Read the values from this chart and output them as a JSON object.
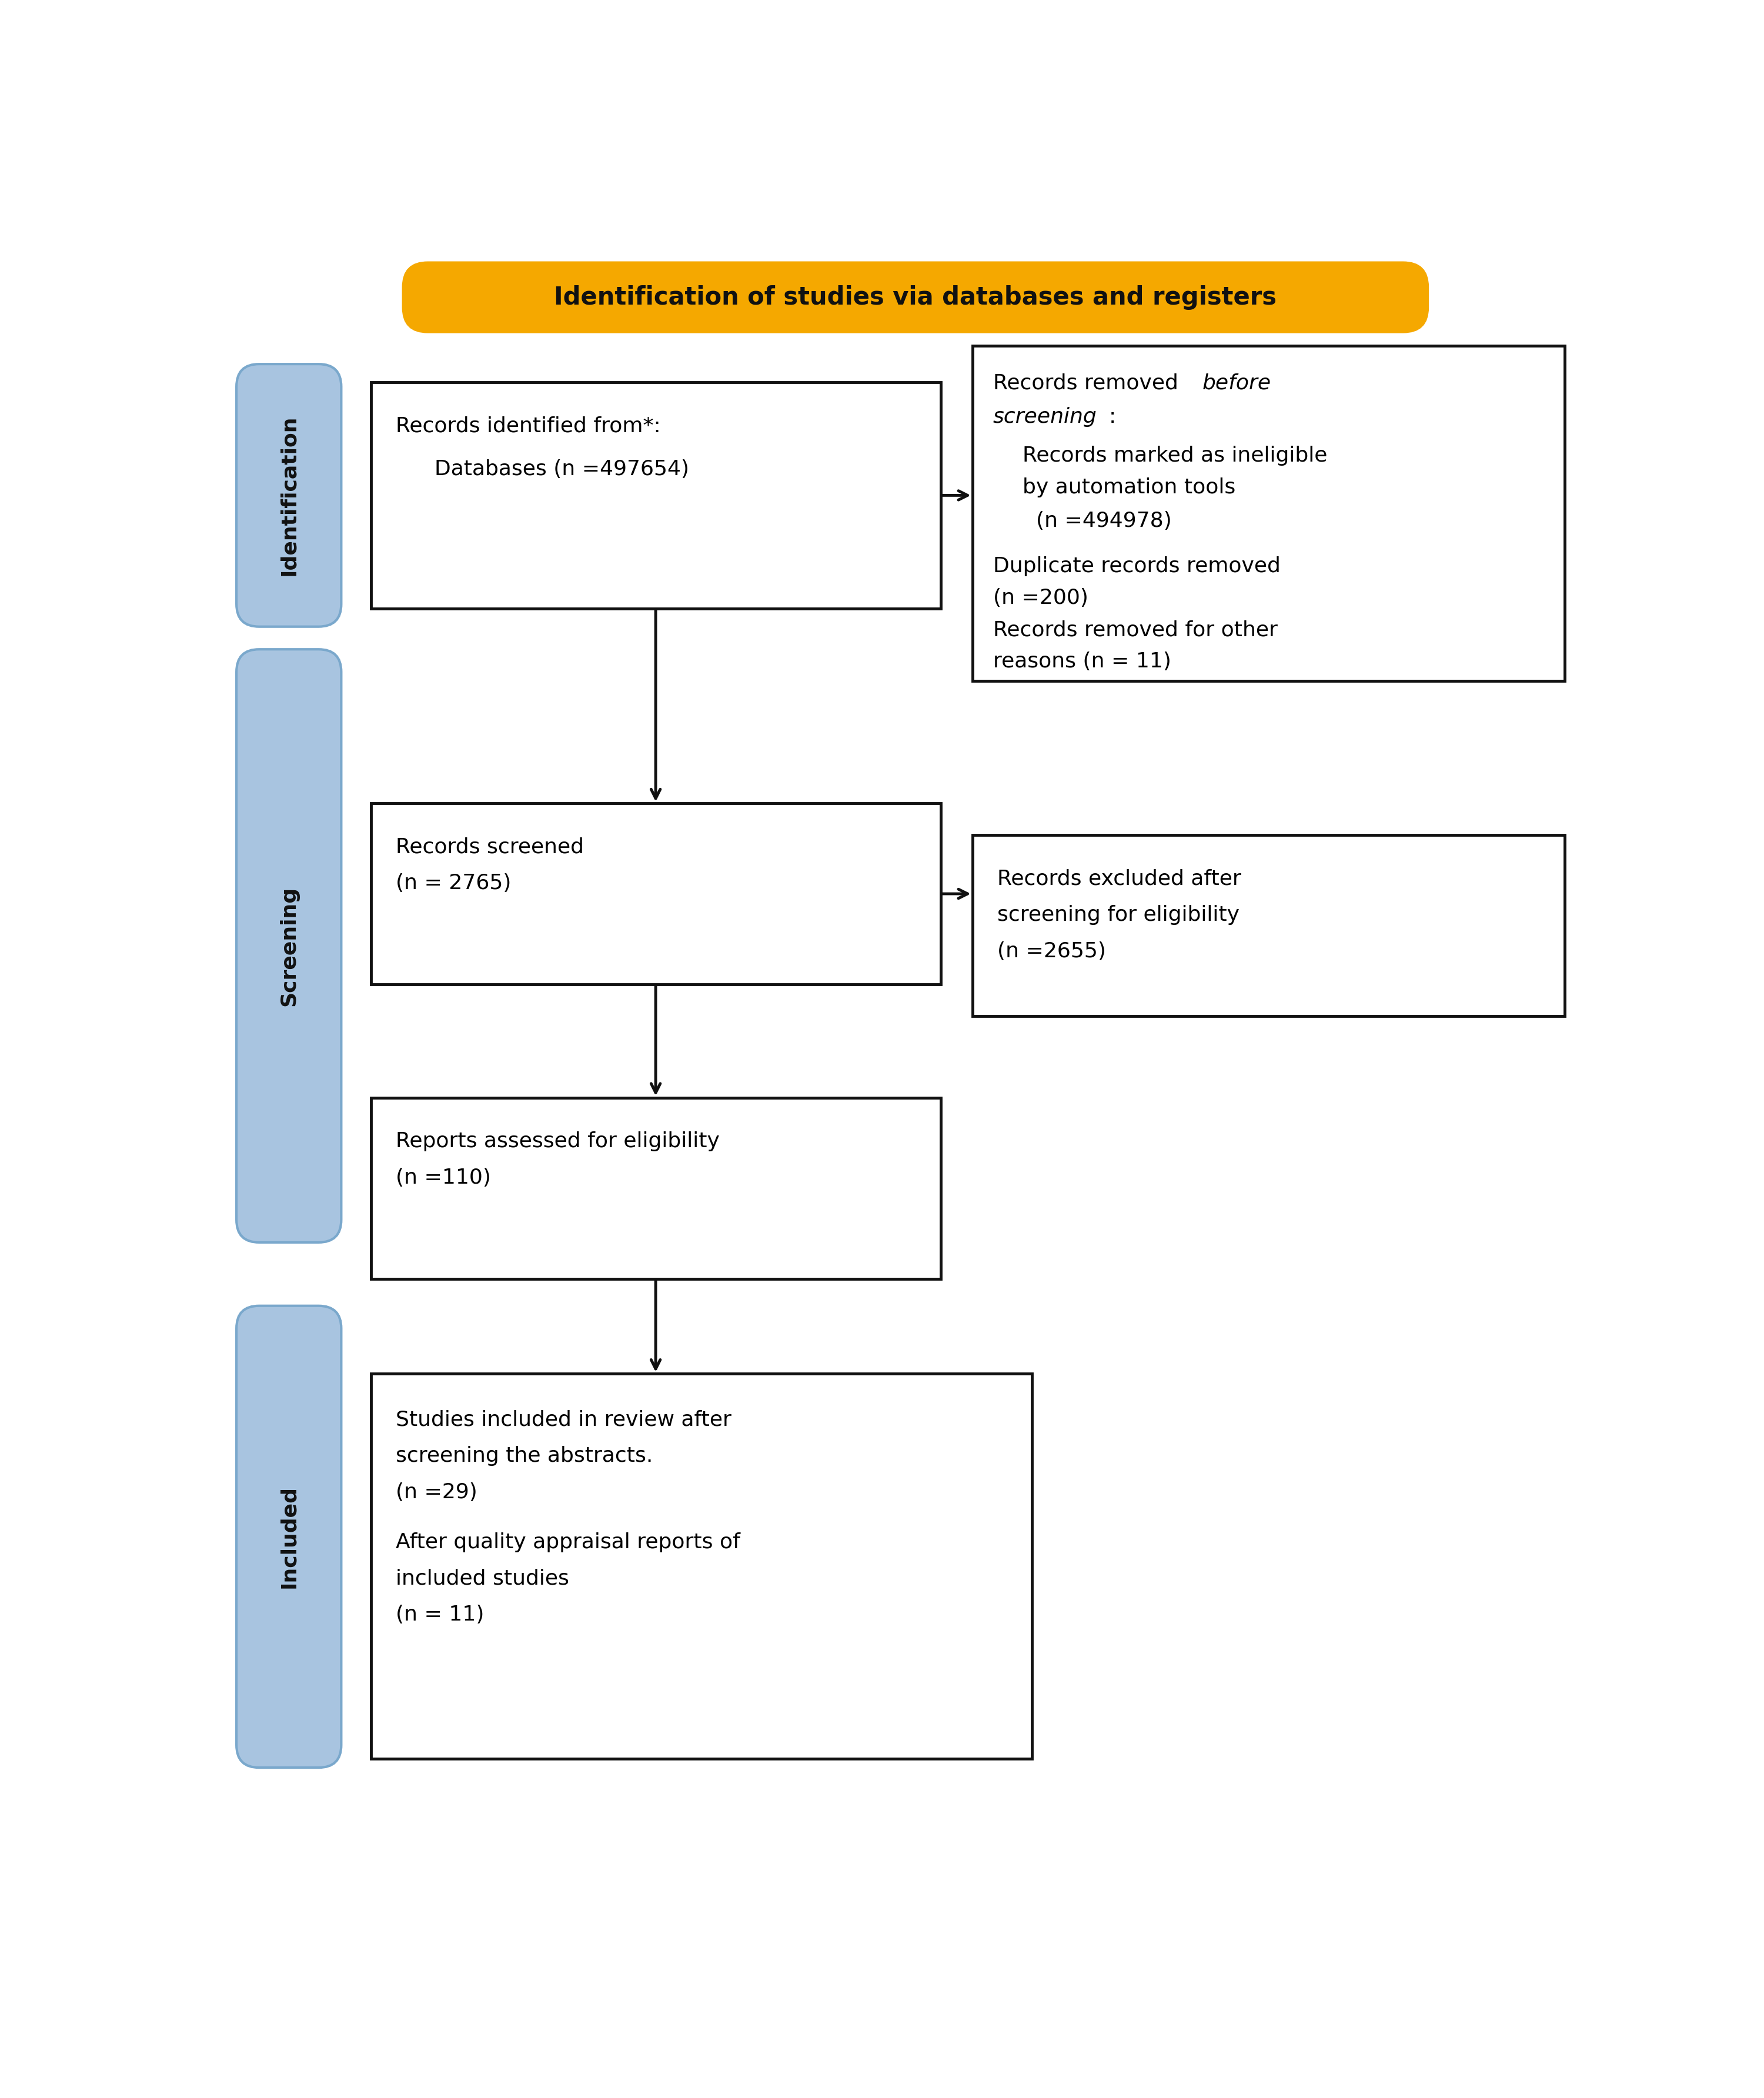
{
  "title": "Identification of studies via databases and registers",
  "title_bg": "#F5A800",
  "title_text_color": "#111111",
  "box_bg": "#ffffff",
  "box_border": "#111111",
  "sidebar_bg": "#A8C4E0",
  "sidebar_border": "#7aa8cc",
  "sidebar_text_color": "#111111",
  "arrow_color": "#111111",
  "sidebar_labels": [
    "Identification",
    "Screening",
    "Included"
  ],
  "bg_color": "#ffffff",
  "fig_w": 30.0,
  "fig_h": 35.68
}
